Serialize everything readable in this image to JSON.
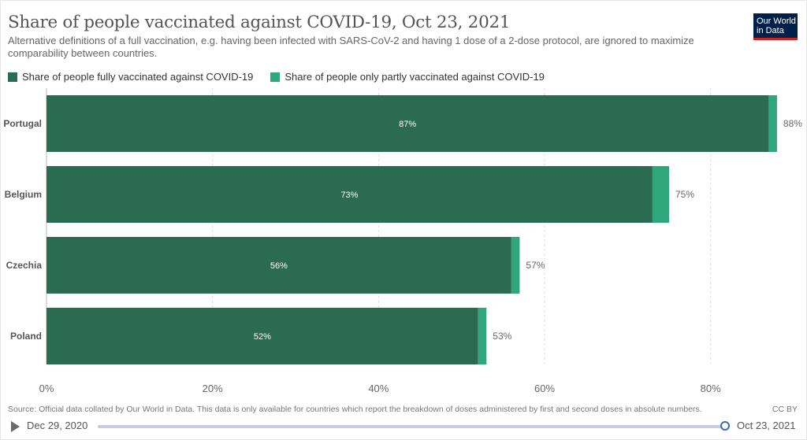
{
  "header": {
    "title": "Share of people vaccinated against COVID-19, Oct 23, 2021",
    "subtitle": "Alternative definitions of a full vaccination, e.g. having been infected with SARS-CoV-2 and having 1 dose of a 2-dose protocol, are ignored to maximize comparability between countries.",
    "logo_line1": "Our World",
    "logo_line2": "in Data"
  },
  "colors": {
    "fully": "#2a6b52",
    "partly": "#2fa67c",
    "logo_bg": "#002147",
    "logo_accent": "#ce261e"
  },
  "chart_data": {
    "type": "bar",
    "orientation": "horizontal",
    "stacked": true,
    "categories": [
      "Portugal",
      "Belgium",
      "Czechia",
      "Poland"
    ],
    "series": [
      {
        "name": "Share of people fully vaccinated against COVID-19",
        "values": [
          87,
          73,
          56,
          52
        ],
        "color": "#2a6b52"
      },
      {
        "name": "Share of people only partly vaccinated against COVID-19",
        "values": [
          1,
          2,
          1,
          1
        ],
        "color": "#2fa67c"
      }
    ],
    "inner_labels": [
      "87%",
      "73%",
      "56%",
      "52%"
    ],
    "total_labels": [
      "88%",
      "75%",
      "57%",
      "53%"
    ],
    "x_ticks": [
      0,
      20,
      40,
      60,
      80
    ],
    "x_tick_labels": [
      "0%",
      "20%",
      "40%",
      "60%",
      "80%"
    ],
    "xlim": [
      0,
      90
    ],
    "grid": true,
    "legend_position": "top-left"
  },
  "footer": {
    "source": "Source: Official data collated by Our World in Data. This data is only available for countries which report the breakdown of doses administered by first and second doses in absolute numbers.",
    "license": "CC BY"
  },
  "timeline": {
    "start_date": "Dec 29, 2020",
    "end_date": "Oct 23, 2021",
    "progress": 1.0
  }
}
